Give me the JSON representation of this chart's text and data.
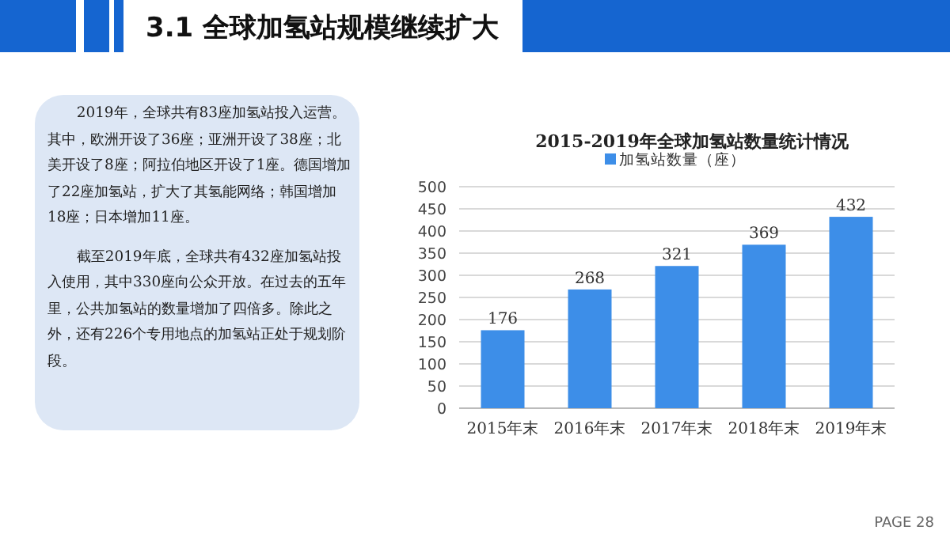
{
  "chart_data": {
    "type": "bar",
    "title": "3.1 全球加氢站规模继续扩大",
    "subtitle": "2015-2019年全球加氢站数量统计情况",
    "categories": [
      "2015年末",
      "2016年末",
      "2017年末",
      "2018年末",
      "2019年末"
    ],
    "series": [
      {
        "name": "加氢站数量（座）",
        "color": "#3d8ee8",
        "values": [
          176,
          268,
          321,
          369,
          432
        ]
      }
    ],
    "ylim": [
      0,
      500
    ],
    "yticks": [
      0,
      50,
      100,
      150,
      200,
      250,
      300,
      350,
      400,
      450,
      500
    ],
    "grid": "y",
    "legend": "top",
    "data_labels": true,
    "annotations": [
      "2019年，全球共有83座加氢站投入运营。其中，欧洲开设了36座；亚洲开设了38座；北美开设了8座；阿拉伯地区开设了1座。德国增加了22座加氢站，扩大了其氢能网络；韩国增加18座；日本增加11座。",
      "截至2019年底，全球共有432座加氢站投入使用，其中330座向公众开放。在过去的五年里，公共加氢站的数量增加了四倍多。除此之外，还有226个专用地点的加氢站正处于规划阶段。",
      "PAGE 28"
    ]
  }
}
